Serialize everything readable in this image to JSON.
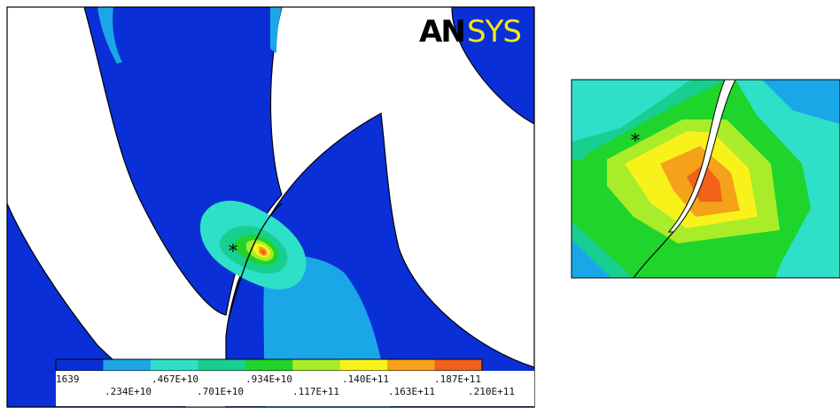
{
  "logo": {
    "part1": "AN",
    "part2": "SYS"
  },
  "main_view": {
    "marker": "*"
  },
  "zoom_view": {
    "marker": "*"
  },
  "legend": {
    "colors": [
      "#0a2fd6",
      "#1aa7e8",
      "#2ee0c8",
      "#17cf8f",
      "#1fd42a",
      "#a8ec2a",
      "#f8f21a",
      "#f5a21a",
      "#f0611a"
    ],
    "top_labels": [
      "1639",
      ".467E+10",
      ".934E+10",
      ".140E+11",
      ".187E+11"
    ],
    "bottom_labels": [
      ".234E+10",
      ".701E+10",
      ".117E+11",
      ".163E+11",
      ".210E+11"
    ]
  }
}
